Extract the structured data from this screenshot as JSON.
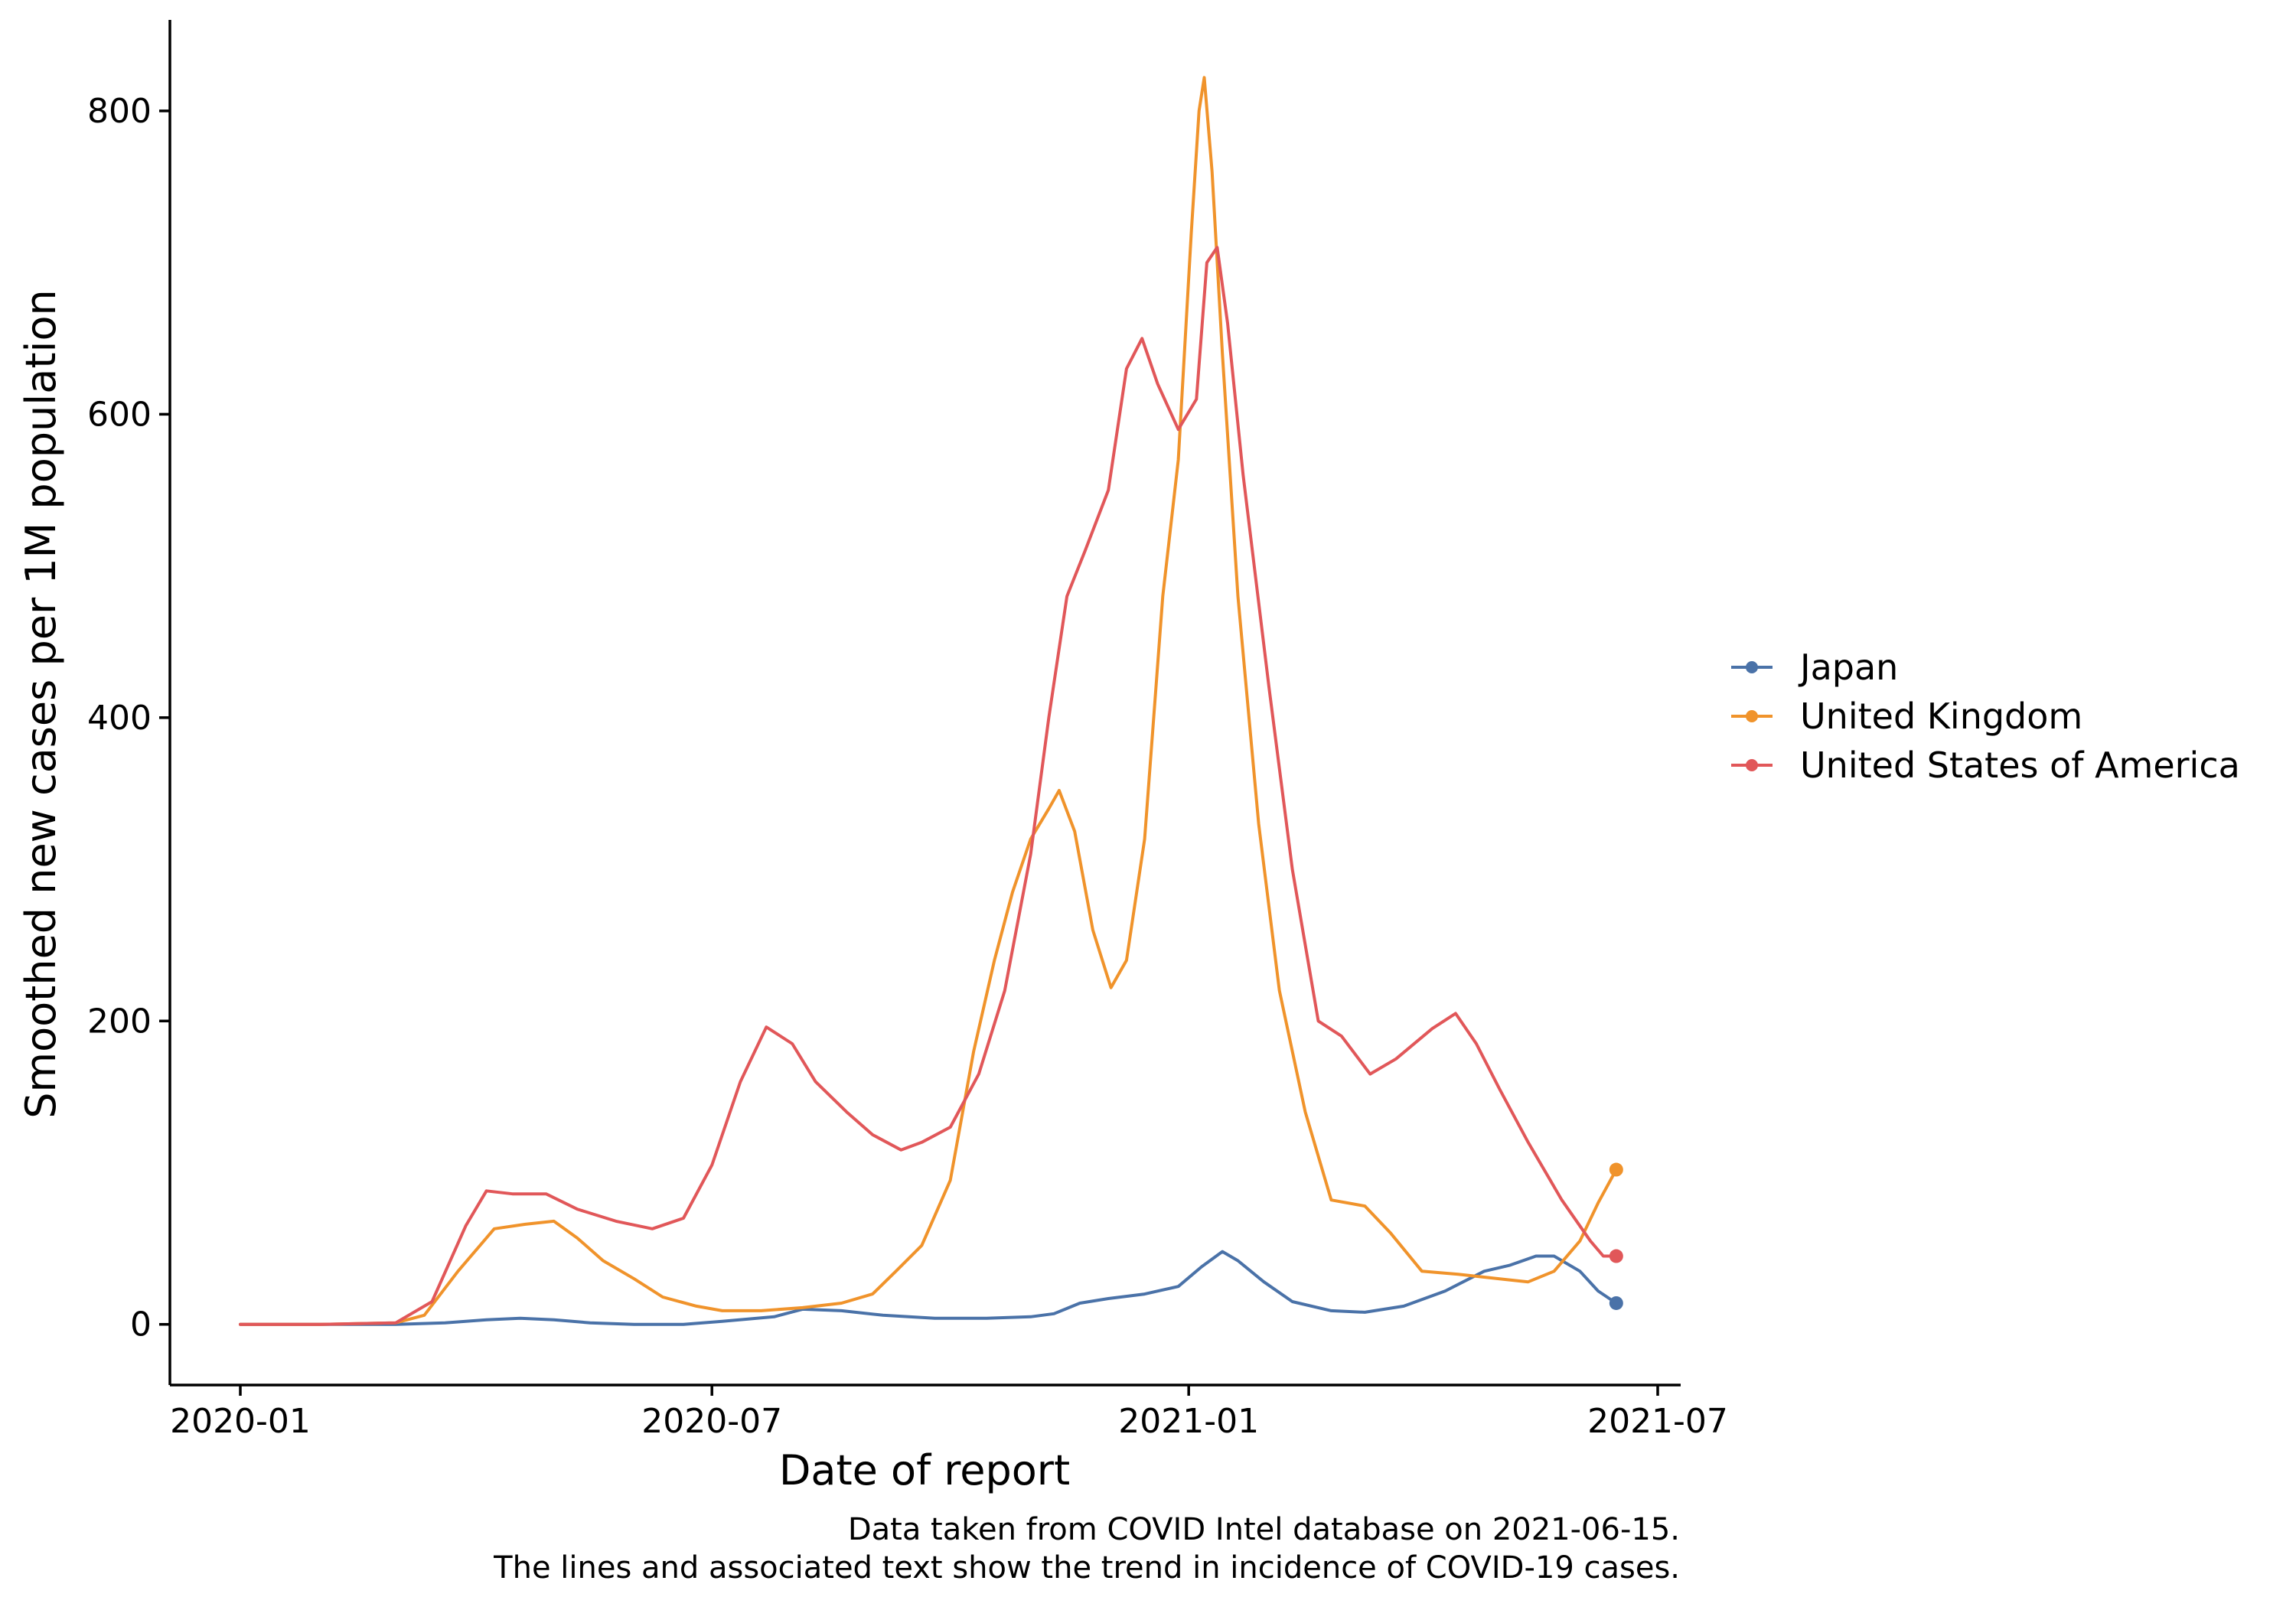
{
  "chart_data": {
    "type": "line",
    "xlabel": "Date of report",
    "ylabel": "Smoothed new cases per 1M population",
    "x_axis": {
      "type": "date",
      "range": [
        "2020-01-01",
        "2021-07-01"
      ],
      "ticks": [
        "2020-01-01",
        "2020-07-01",
        "2021-01-01",
        "2021-07-01"
      ],
      "tick_labels": [
        "2020-01",
        "2020-07",
        "2021-01",
        "2021-07"
      ]
    },
    "y_axis": {
      "range": [
        -40,
        860
      ],
      "ticks": [
        0,
        200,
        400,
        600,
        800
      ],
      "tick_labels": [
        "0",
        "200",
        "400",
        "600",
        "800"
      ]
    },
    "grid": false,
    "legend_position": "right",
    "end_markers": true,
    "series": [
      {
        "name": "Japan",
        "color": "#4a72a8",
        "points": [
          [
            "2020-01-01",
            0
          ],
          [
            "2020-02-01",
            0
          ],
          [
            "2020-03-01",
            0
          ],
          [
            "2020-03-20",
            1
          ],
          [
            "2020-04-05",
            3
          ],
          [
            "2020-04-18",
            4
          ],
          [
            "2020-05-01",
            3
          ],
          [
            "2020-05-15",
            1
          ],
          [
            "2020-06-01",
            0
          ],
          [
            "2020-06-20",
            0
          ],
          [
            "2020-07-05",
            2
          ],
          [
            "2020-07-25",
            5
          ],
          [
            "2020-08-05",
            10
          ],
          [
            "2020-08-20",
            9
          ],
          [
            "2020-09-05",
            6
          ],
          [
            "2020-09-25",
            4
          ],
          [
            "2020-10-15",
            4
          ],
          [
            "2020-11-01",
            5
          ],
          [
            "2020-11-10",
            7
          ],
          [
            "2020-11-20",
            14
          ],
          [
            "2020-12-01",
            17
          ],
          [
            "2020-12-15",
            20
          ],
          [
            "2020-12-28",
            25
          ],
          [
            "2021-01-06",
            38
          ],
          [
            "2021-01-14",
            48
          ],
          [
            "2021-01-20",
            42
          ],
          [
            "2021-01-30",
            28
          ],
          [
            "2021-02-10",
            15
          ],
          [
            "2021-02-25",
            9
          ],
          [
            "2021-03-10",
            8
          ],
          [
            "2021-03-25",
            12
          ],
          [
            "2021-04-10",
            22
          ],
          [
            "2021-04-25",
            35
          ],
          [
            "2021-05-05",
            39
          ],
          [
            "2021-05-15",
            45
          ],
          [
            "2021-05-22",
            45
          ],
          [
            "2021-06-01",
            35
          ],
          [
            "2021-06-08",
            22
          ],
          [
            "2021-06-15",
            14
          ]
        ]
      },
      {
        "name": "United Kingdom",
        "color": "#f0932b",
        "points": [
          [
            "2020-01-01",
            0
          ],
          [
            "2020-02-01",
            0
          ],
          [
            "2020-03-01",
            1
          ],
          [
            "2020-03-12",
            6
          ],
          [
            "2020-03-25",
            35
          ],
          [
            "2020-04-08",
            63
          ],
          [
            "2020-04-20",
            66
          ],
          [
            "2020-05-01",
            68
          ],
          [
            "2020-05-10",
            57
          ],
          [
            "2020-05-20",
            42
          ],
          [
            "2020-06-01",
            30
          ],
          [
            "2020-06-12",
            18
          ],
          [
            "2020-06-25",
            12
          ],
          [
            "2020-07-05",
            9
          ],
          [
            "2020-07-20",
            9
          ],
          [
            "2020-08-05",
            11
          ],
          [
            "2020-08-20",
            14
          ],
          [
            "2020-09-01",
            20
          ],
          [
            "2020-09-10",
            35
          ],
          [
            "2020-09-20",
            52
          ],
          [
            "2020-10-01",
            95
          ],
          [
            "2020-10-10",
            180
          ],
          [
            "2020-10-18",
            240
          ],
          [
            "2020-10-25",
            285
          ],
          [
            "2020-11-01",
            320
          ],
          [
            "2020-11-08",
            340
          ],
          [
            "2020-11-12",
            352
          ],
          [
            "2020-11-18",
            325
          ],
          [
            "2020-11-25",
            260
          ],
          [
            "2020-12-02",
            222
          ],
          [
            "2020-12-08",
            240
          ],
          [
            "2020-12-15",
            320
          ],
          [
            "2020-12-22",
            480
          ],
          [
            "2020-12-28",
            570
          ],
          [
            "2021-01-02",
            720
          ],
          [
            "2021-01-05",
            800
          ],
          [
            "2021-01-07",
            822
          ],
          [
            "2021-01-10",
            760
          ],
          [
            "2021-01-14",
            640
          ],
          [
            "2021-01-20",
            480
          ],
          [
            "2021-01-28",
            330
          ],
          [
            "2021-02-05",
            220
          ],
          [
            "2021-02-15",
            140
          ],
          [
            "2021-02-25",
            82
          ],
          [
            "2021-03-10",
            78
          ],
          [
            "2021-03-20",
            60
          ],
          [
            "2021-04-01",
            35
          ],
          [
            "2021-04-15",
            33
          ],
          [
            "2021-05-01",
            30
          ],
          [
            "2021-05-12",
            28
          ],
          [
            "2021-05-22",
            35
          ],
          [
            "2021-06-01",
            55
          ],
          [
            "2021-06-08",
            80
          ],
          [
            "2021-06-15",
            102
          ]
        ]
      },
      {
        "name": "United States of America",
        "color": "#e15759",
        "points": [
          [
            "2020-01-01",
            0
          ],
          [
            "2020-02-01",
            0
          ],
          [
            "2020-03-01",
            1
          ],
          [
            "2020-03-15",
            15
          ],
          [
            "2020-03-28",
            65
          ],
          [
            "2020-04-05",
            88
          ],
          [
            "2020-04-15",
            86
          ],
          [
            "2020-04-28",
            86
          ],
          [
            "2020-05-10",
            76
          ],
          [
            "2020-05-25",
            68
          ],
          [
            "2020-06-08",
            63
          ],
          [
            "2020-06-20",
            70
          ],
          [
            "2020-07-01",
            105
          ],
          [
            "2020-07-12",
            160
          ],
          [
            "2020-07-22",
            196
          ],
          [
            "2020-08-01",
            185
          ],
          [
            "2020-08-10",
            160
          ],
          [
            "2020-08-22",
            140
          ],
          [
            "2020-09-01",
            125
          ],
          [
            "2020-09-12",
            115
          ],
          [
            "2020-09-20",
            120
          ],
          [
            "2020-10-01",
            130
          ],
          [
            "2020-10-12",
            165
          ],
          [
            "2020-10-22",
            220
          ],
          [
            "2020-11-01",
            310
          ],
          [
            "2020-11-08",
            400
          ],
          [
            "2020-11-15",
            480
          ],
          [
            "2020-11-22",
            510
          ],
          [
            "2020-12-01",
            550
          ],
          [
            "2020-12-08",
            630
          ],
          [
            "2020-12-14",
            650
          ],
          [
            "2020-12-20",
            620
          ],
          [
            "2020-12-28",
            590
          ],
          [
            "2021-01-04",
            610
          ],
          [
            "2021-01-08",
            700
          ],
          [
            "2021-01-12",
            710
          ],
          [
            "2021-01-16",
            660
          ],
          [
            "2021-01-22",
            560
          ],
          [
            "2021-02-01",
            420
          ],
          [
            "2021-02-10",
            300
          ],
          [
            "2021-02-20",
            200
          ],
          [
            "2021-03-01",
            190
          ],
          [
            "2021-03-12",
            165
          ],
          [
            "2021-03-22",
            175
          ],
          [
            "2021-04-05",
            195
          ],
          [
            "2021-04-14",
            205
          ],
          [
            "2021-04-22",
            185
          ],
          [
            "2021-05-01",
            155
          ],
          [
            "2021-05-12",
            120
          ],
          [
            "2021-05-25",
            82
          ],
          [
            "2021-06-05",
            55
          ],
          [
            "2021-06-10",
            45
          ],
          [
            "2021-06-15",
            45
          ]
        ]
      }
    ],
    "caption": [
      "Data taken from COVID Intel database on 2021-06-15.",
      "The lines and associated text show the trend in incidence of COVID-19 cases."
    ]
  }
}
